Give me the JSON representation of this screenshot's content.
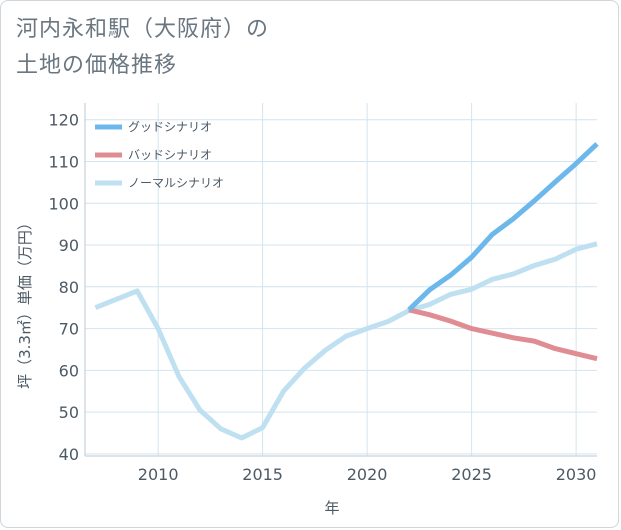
{
  "title": {
    "line1": "河内永和駅（大阪府）の",
    "line2": "土地の価格推移"
  },
  "chart_data": {
    "type": "line",
    "title": "河内永和駅（大阪府）の土地の価格推移",
    "xlabel": "年",
    "ylabel": "坪（3.3㎡）単価（万円）",
    "xlim": [
      2006.5,
      2031
    ],
    "ylim": [
      39.5,
      124
    ],
    "xticks": [
      2010,
      2015,
      2020,
      2025,
      2030
    ],
    "yticks": [
      40,
      50,
      60,
      70,
      80,
      90,
      100,
      110,
      120
    ],
    "grid": true,
    "legend_position": "top-left",
    "series": [
      {
        "name": "グッドシナリオ",
        "color": "#6cb8ec",
        "x": [
          2022,
          2023,
          2024,
          2025,
          2026,
          2027,
          2028,
          2029,
          2030,
          2031
        ],
        "values": [
          74.5,
          79.3,
          82.8,
          87.1,
          92.6,
          96.3,
          100.6,
          105.1,
          109.5,
          114.2
        ]
      },
      {
        "name": "バッドシナリオ",
        "color": "#e08c93",
        "x": [
          2022,
          2023,
          2024,
          2025,
          2026,
          2027,
          2028,
          2029,
          2030,
          2031
        ],
        "values": [
          74.5,
          73.3,
          71.8,
          70.0,
          68.9,
          67.8,
          67.0,
          65.2,
          64.0,
          62.8
        ]
      },
      {
        "name": "ノーマルシナリオ",
        "color": "#bfe0f0",
        "x": [
          2007,
          2008,
          2009,
          2010,
          2011,
          2012,
          2013,
          2014,
          2015,
          2016,
          2017,
          2018,
          2019,
          2020,
          2021,
          2022,
          2023,
          2024,
          2025,
          2026,
          2027,
          2028,
          2029,
          2030,
          2031
        ],
        "values": [
          75.0,
          77.0,
          79.0,
          70.0,
          58.5,
          50.5,
          46.0,
          43.8,
          46.3,
          55.0,
          60.5,
          64.8,
          68.2,
          70.0,
          71.7,
          74.3,
          75.8,
          78.2,
          79.4,
          81.8,
          83.1,
          85.1,
          86.6,
          89.0,
          90.3
        ]
      }
    ]
  }
}
